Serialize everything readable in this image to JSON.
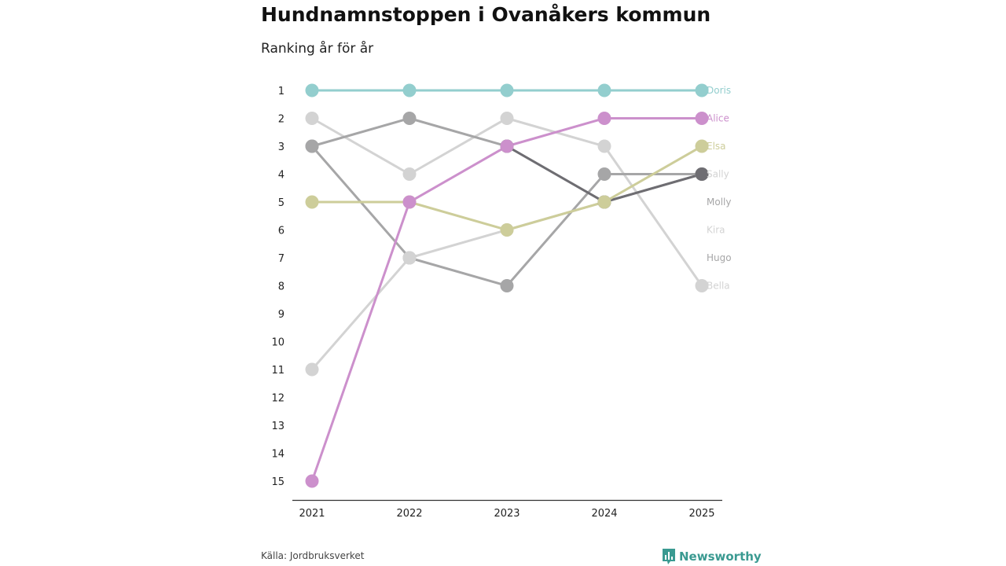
{
  "header": {
    "title": "Hundnamnstoppen i Ovanåkers kommun",
    "subtitle": "Ranking år för år"
  },
  "footer": {
    "source": "Källa: Jordbruksverket",
    "brand": "Newsworthy"
  },
  "chart_data": {
    "type": "line",
    "title": "Hundnamnstoppen i Ovanåkers kommun",
    "subtitle": "Ranking år för år",
    "xlabel": "",
    "ylabel": "",
    "x": [
      "2021",
      "2022",
      "2023",
      "2024",
      "2025"
    ],
    "y_ticks": [
      "1",
      "2",
      "3",
      "4",
      "5",
      "6",
      "7",
      "8",
      "9",
      "10",
      "11",
      "12",
      "13",
      "14",
      "15"
    ],
    "ylim": [
      1,
      15
    ],
    "y_inverted": true,
    "series": [
      {
        "name": "Bella",
        "color": "#d3d3d3",
        "values": [
          2,
          4,
          2,
          3,
          8
        ]
      },
      {
        "name": "Hugo",
        "color": "#a6a6a7",
        "values": [
          3,
          7,
          8,
          4,
          4
        ]
      },
      {
        "name": "Kira",
        "color": "#d3d3d3",
        "values": [
          11,
          7,
          6,
          5,
          4
        ]
      },
      {
        "name": "Molly",
        "color": "#a6a6a7",
        "values": [
          3,
          2,
          3,
          5,
          4
        ]
      },
      {
        "name": "Sally",
        "color": "#6e6d72",
        "values": [
          null,
          null,
          3,
          5,
          4
        ]
      },
      {
        "name": "Elsa",
        "color": "#cdcd9a",
        "values": [
          5,
          5,
          6,
          5,
          3
        ]
      },
      {
        "name": "Alice",
        "color": "#cc90cc",
        "values": [
          15,
          5,
          3,
          2,
          2
        ]
      },
      {
        "name": "Doris",
        "color": "#93cece",
        "values": [
          1,
          1,
          1,
          1,
          1
        ]
      }
    ],
    "end_labels": [
      {
        "name": "Doris",
        "color": "#93cece"
      },
      {
        "name": "Alice",
        "color": "#cc90cc"
      },
      {
        "name": "Elsa",
        "color": "#cdcd9a"
      },
      {
        "name": "Sally",
        "color": "#d3d3d3"
      },
      {
        "name": "Molly",
        "color": "#a6a6a7"
      },
      {
        "name": "Kira",
        "color": "#d3d3d3"
      },
      {
        "name": "Hugo",
        "color": "#a6a6a7"
      },
      {
        "name": "Bella",
        "color": "#d3d3d3"
      }
    ],
    "axis_color": "#333333"
  }
}
